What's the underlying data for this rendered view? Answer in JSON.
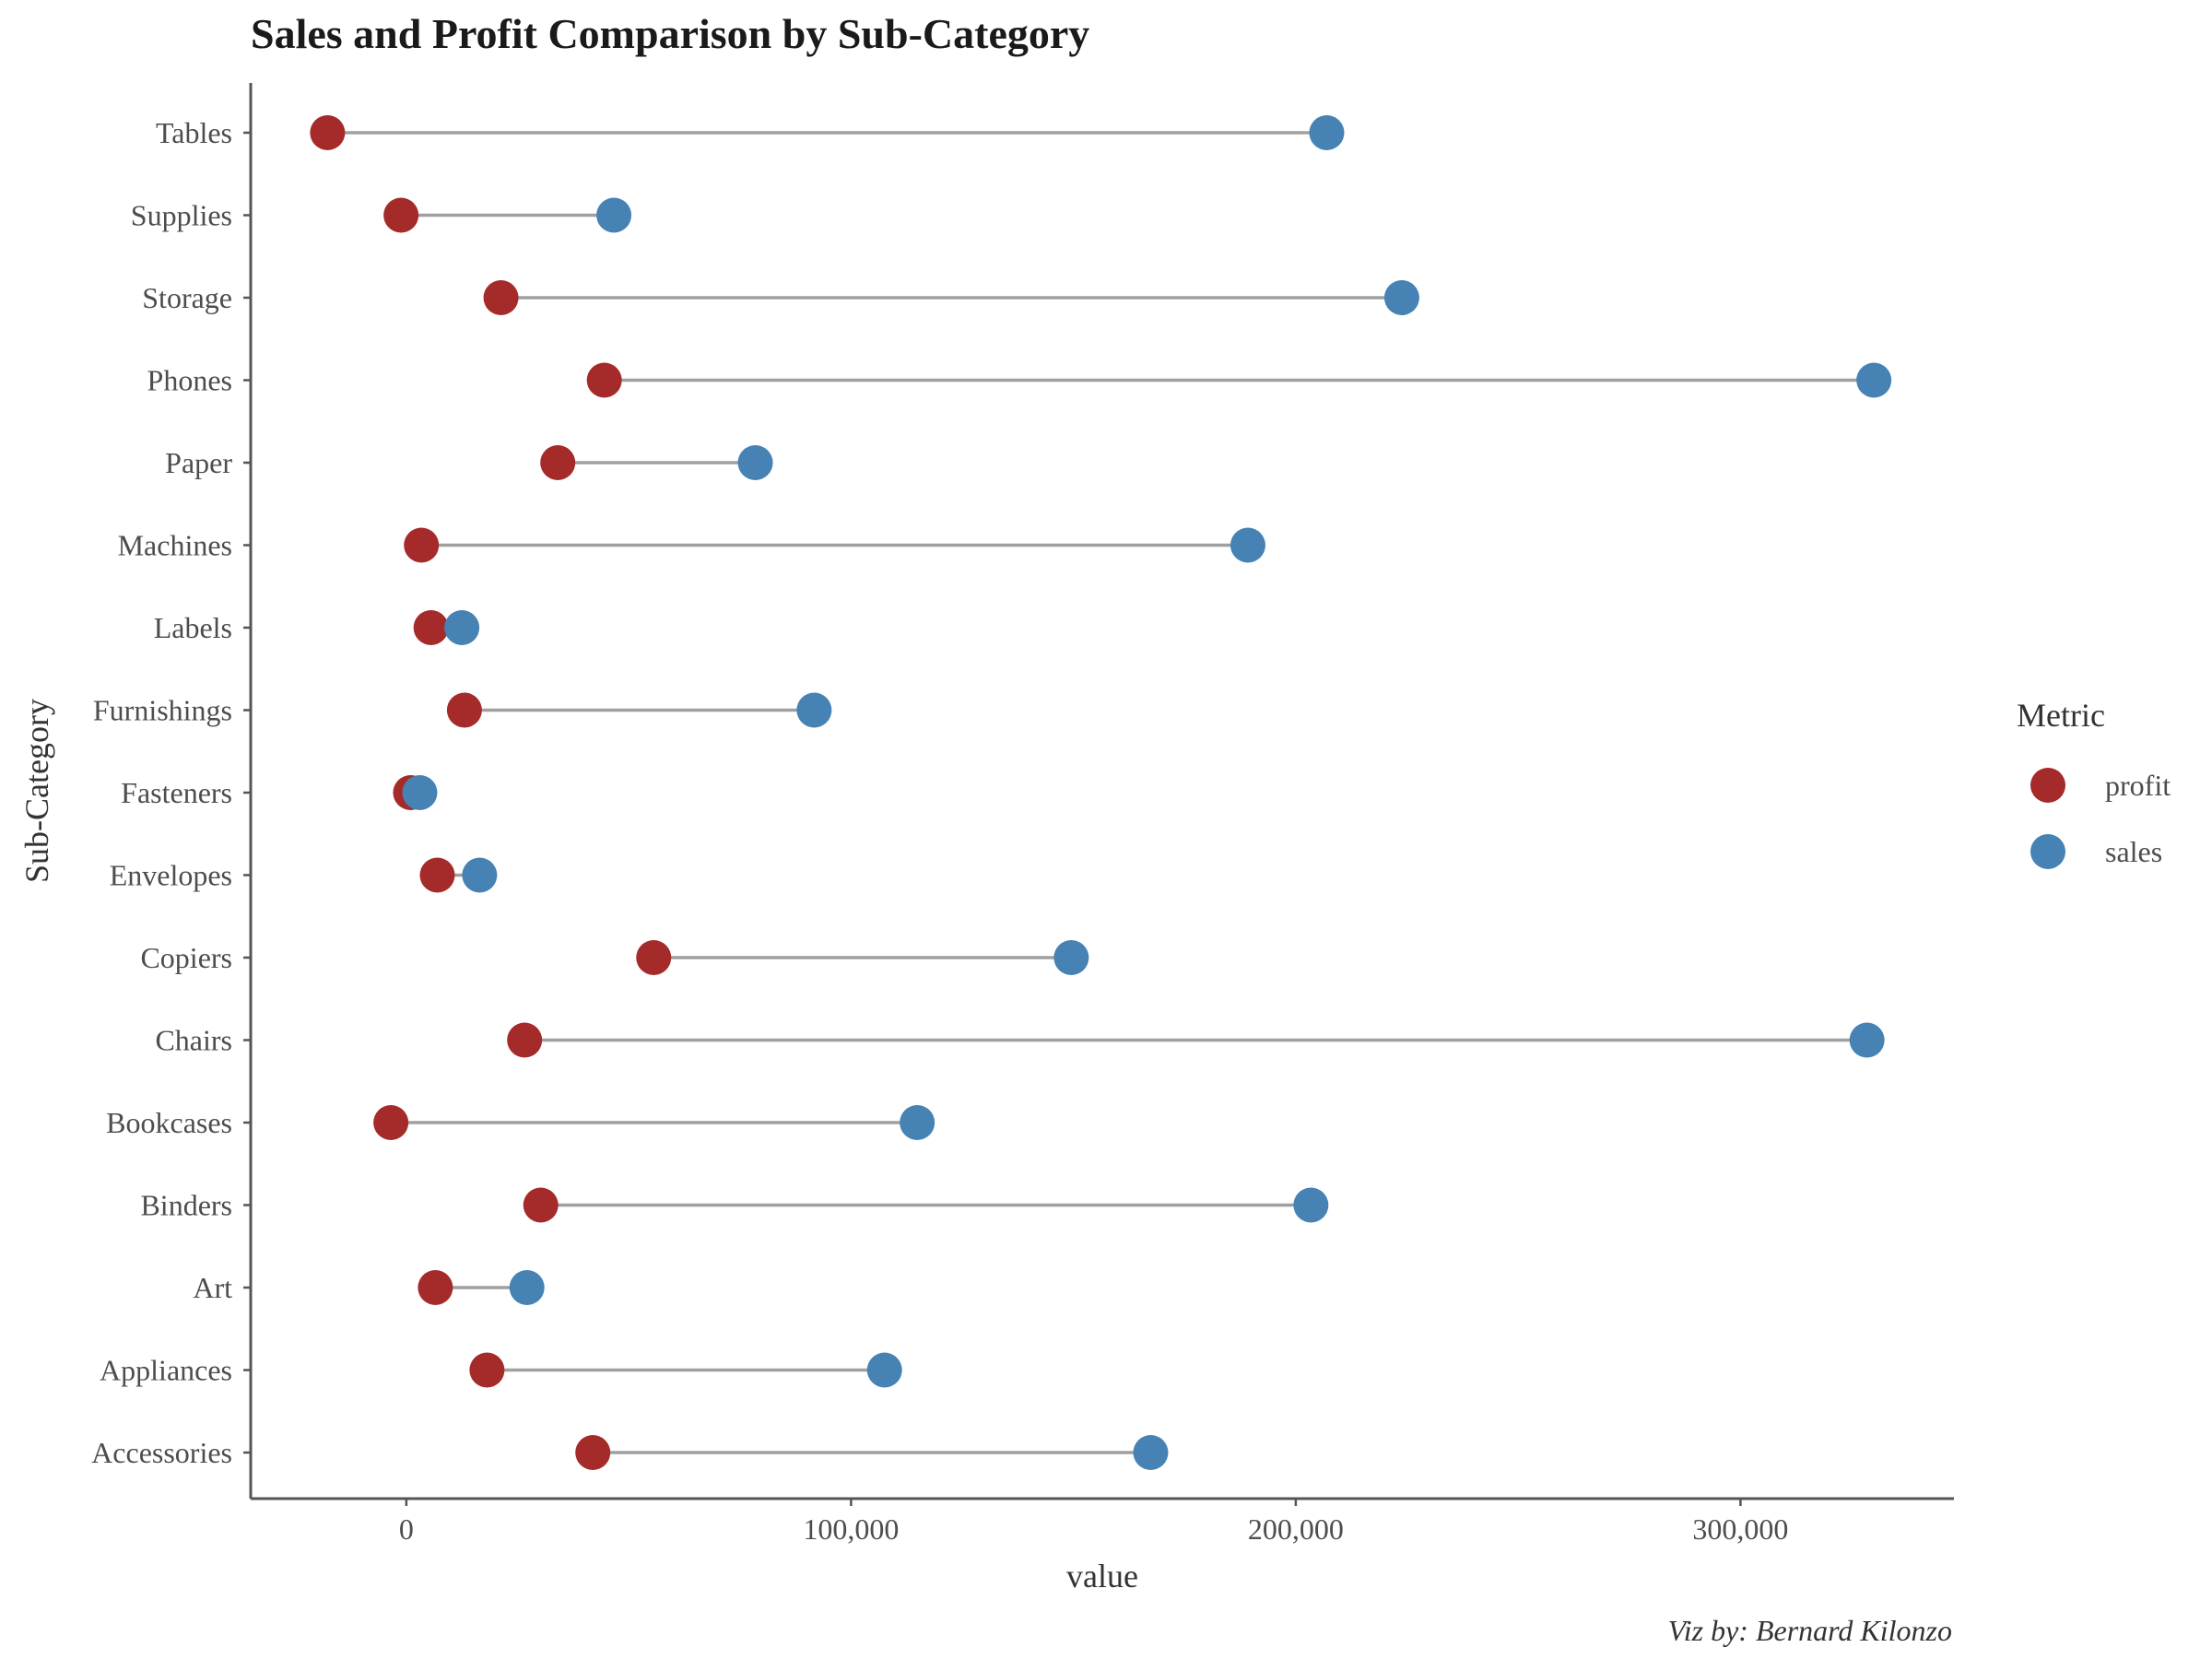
{
  "chart_data": {
    "type": "dumbbell",
    "title": "Sales and Profit Comparison by Sub-Category",
    "xlabel": "value",
    "ylabel": "Sub-Category",
    "caption": "Viz by: Bernard Kilonzo",
    "xlim": [
      -35000,
      348000
    ],
    "x_ticks": [
      0,
      100000,
      200000,
      300000
    ],
    "x_tick_labels": [
      "0",
      "100,000",
      "200,000",
      "300,000"
    ],
    "categories": [
      "Accessories",
      "Appliances",
      "Art",
      "Binders",
      "Bookcases",
      "Chairs",
      "Copiers",
      "Envelopes",
      "Fasteners",
      "Furnishings",
      "Labels",
      "Machines",
      "Paper",
      "Phones",
      "Storage",
      "Supplies",
      "Tables"
    ],
    "series": [
      {
        "name": "profit",
        "color": "#a52a2a",
        "values": [
          41937,
          18138,
          6528,
          30222,
          -3473,
          26590,
          55618,
          6964,
          950,
          13059,
          5546,
          3385,
          34054,
          44516,
          21279,
          -1189,
          -17725
        ]
      },
      {
        "name": "sales",
        "color": "#4682b4",
        "values": [
          167380,
          107532,
          27119,
          203413,
          114880,
          328449,
          149528,
          16476,
          3024,
          91705,
          12486,
          189239,
          78479,
          330007,
          223844,
          46674,
          206966
        ]
      }
    ],
    "legend": {
      "title": "Metric",
      "position": "right"
    },
    "grid": false
  }
}
